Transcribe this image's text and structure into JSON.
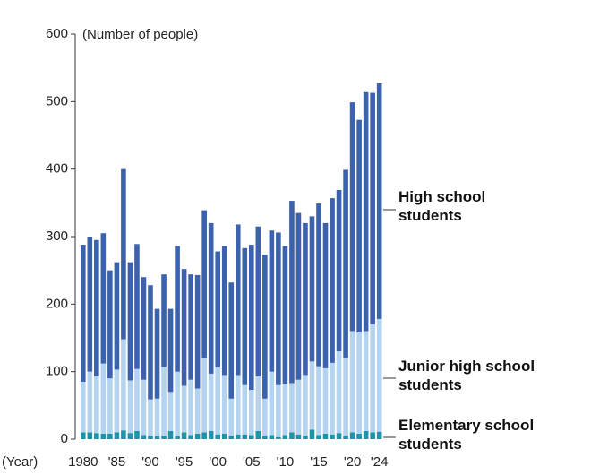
{
  "chart_data": {
    "type": "stacked_bar",
    "y_label": "(Number of people)",
    "x_label": "(Year)",
    "categories": [
      "1980",
      null,
      null,
      null,
      null,
      "'85",
      null,
      null,
      null,
      null,
      "'90",
      null,
      null,
      null,
      null,
      "'95",
      null,
      null,
      null,
      null,
      "'00",
      null,
      null,
      null,
      null,
      "'05",
      null,
      null,
      null,
      null,
      "'10",
      null,
      null,
      null,
      null,
      "'15",
      null,
      null,
      null,
      null,
      "'20",
      null,
      null,
      null,
      "'24"
    ],
    "series": [
      {
        "name": "Elementary school students",
        "color": "#1f93a8",
        "values": [
          10,
          10,
          9,
          8,
          8,
          10,
          13,
          9,
          12,
          6,
          5,
          4,
          5,
          12,
          4,
          10,
          6,
          8,
          10,
          12,
          7,
          8,
          5,
          7,
          7,
          6,
          12,
          5,
          6,
          3,
          6,
          10,
          7,
          5,
          14,
          6,
          8,
          7,
          9,
          5,
          10,
          8,
          12,
          10,
          11
        ]
      },
      {
        "name": "Junior high school students",
        "color": "#b3d3ef",
        "values": [
          75,
          90,
          84,
          104,
          82,
          93,
          135,
          78,
          92,
          82,
          54,
          56,
          102,
          58,
          96,
          69,
          82,
          67,
          110,
          85,
          99,
          87,
          55,
          88,
          73,
          67,
          81,
          55,
          94,
          77,
          76,
          73,
          81,
          90,
          101,
          102,
          97,
          106,
          121,
          115,
          150,
          150,
          148,
          160,
          167
        ]
      },
      {
        "name": "High school students",
        "color": "#3d62ad",
        "values": [
          203,
          200,
          202,
          193,
          160,
          159,
          252,
          175,
          185,
          152,
          169,
          133,
          137,
          123,
          186,
          173,
          156,
          168,
          219,
          223,
          172,
          191,
          172,
          223,
          203,
          215,
          222,
          213,
          209,
          226,
          204,
          270,
          247,
          225,
          215,
          241,
          215,
          244,
          239,
          279,
          339,
          315,
          354,
          343,
          349
        ]
      }
    ],
    "ylim": [
      0,
      600
    ],
    "yticks": [
      0,
      100,
      200,
      300,
      400,
      500,
      600
    ]
  }
}
